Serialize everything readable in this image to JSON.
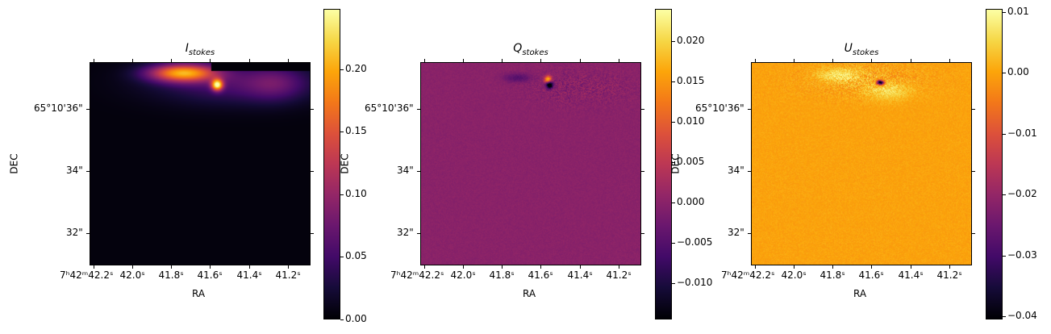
{
  "chart_data": [
    {
      "type": "heatmap",
      "title": {
        "main": "I",
        "sub": "stokes"
      },
      "xlabel": "RA",
      "ylabel": "DEC",
      "colormap": "inferno",
      "xticks": [
        "7ʰ42ᵐ42.2ˢ",
        "42.0ˢ",
        "41.8ˢ",
        "41.6ˢ",
        "41.4ˢ",
        "41.2ˢ"
      ],
      "yticks": [
        "65°10'36\"",
        "34\"",
        "32\""
      ],
      "colorbar": {
        "range": [
          0,
          0.248
        ],
        "ticks": [
          0.0,
          0.05,
          0.1,
          0.15,
          0.2
        ],
        "tick_labels": [
          "0.00",
          "0.05",
          "0.10",
          "0.15",
          "0.20"
        ]
      },
      "background_value": 0.0
    },
    {
      "type": "heatmap",
      "title": {
        "main": "Q",
        "sub": "stokes"
      },
      "xlabel": "RA",
      "ylabel": "DEC",
      "colormap": "inferno",
      "xticks": [
        "7ʰ42ᵐ42.2ˢ",
        "42.0ˢ",
        "41.8ˢ",
        "41.6ˢ",
        "41.4ˢ",
        "41.2ˢ"
      ],
      "yticks": [
        "65°10'36\"",
        "34\"",
        "32\""
      ],
      "colorbar": {
        "range": [
          -0.0145,
          0.024
        ],
        "ticks": [
          -0.01,
          -0.005,
          0.0,
          0.005,
          0.01,
          0.015,
          0.02
        ],
        "tick_labels": [
          "−0.010",
          "−0.005",
          "0.000",
          "0.005",
          "0.010",
          "0.015",
          "0.020"
        ]
      },
      "background_value": 0.0
    },
    {
      "type": "heatmap",
      "title": {
        "main": "U",
        "sub": "stokes"
      },
      "xlabel": "RA",
      "ylabel": "DEC",
      "colormap": "inferno",
      "xticks": [
        "7ʰ42ᵐ42.2ˢ",
        "42.0ˢ",
        "41.8ˢ",
        "41.6ˢ",
        "41.4ˢ",
        "41.2ˢ"
      ],
      "yticks": [
        "65°10'36\"",
        "34\"",
        "32\""
      ],
      "colorbar": {
        "range": [
          -0.0405,
          0.0105
        ],
        "ticks": [
          -0.04,
          -0.03,
          -0.02,
          -0.01,
          0.0,
          0.01
        ],
        "tick_labels": [
          "−0.04",
          "−0.03",
          "−0.02",
          "−0.01",
          "0.00",
          "0.01"
        ]
      },
      "background_value": 0.0
    }
  ]
}
